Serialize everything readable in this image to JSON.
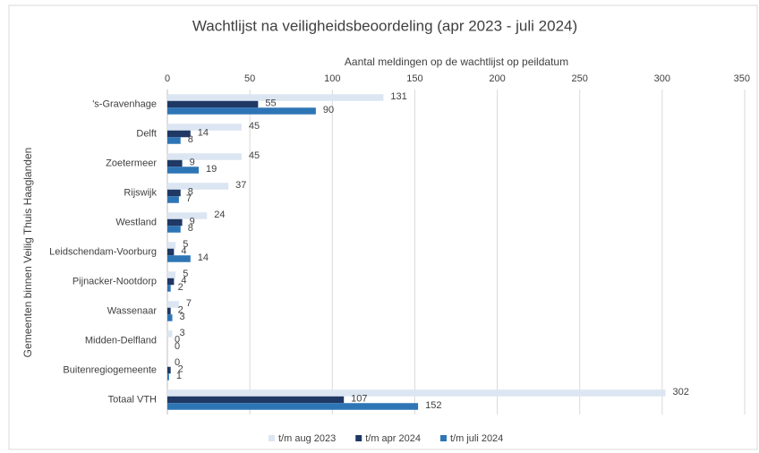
{
  "chart_data": {
    "type": "hbar",
    "title": "Wachtlijst na veiligheidsbeoordeling (apr 2023 - juli 2024)",
    "x_label": "Aantal meldingen op de wachtlijst op peildatum",
    "y_label": "Gemeenten binnen  Veilig Thuis Haaglanden",
    "categories": [
      "'s-Gravenhage",
      "Delft",
      "Zoetermeer",
      "Rijswijk",
      "Westland",
      "Leidschendam-Voorburg",
      "Pijnacker-Nootdorp",
      "Wassenaar",
      "Midden-Delfland",
      "Buitenregiogemeente",
      "Totaal VTH"
    ],
    "series": [
      {
        "name": "t/m aug 2023",
        "color": "#dce6f2",
        "values": [
          131,
          45,
          45,
          37,
          24,
          5,
          5,
          7,
          3,
          0,
          302
        ]
      },
      {
        "name": "t/m apr  2024",
        "color": "#1f3864",
        "values": [
          55,
          14,
          9,
          8,
          9,
          4,
          4,
          2,
          0,
          2,
          107
        ]
      },
      {
        "name": "t/m juli  2024",
        "color": "#2e75b6",
        "values": [
          90,
          8,
          19,
          7,
          8,
          14,
          2,
          3,
          0,
          1,
          152
        ]
      }
    ],
    "xlim": [
      0,
      350
    ],
    "xticks": [
      0,
      50,
      100,
      150,
      200,
      250,
      300,
      350
    ],
    "grid": true,
    "legend": "bottom"
  }
}
